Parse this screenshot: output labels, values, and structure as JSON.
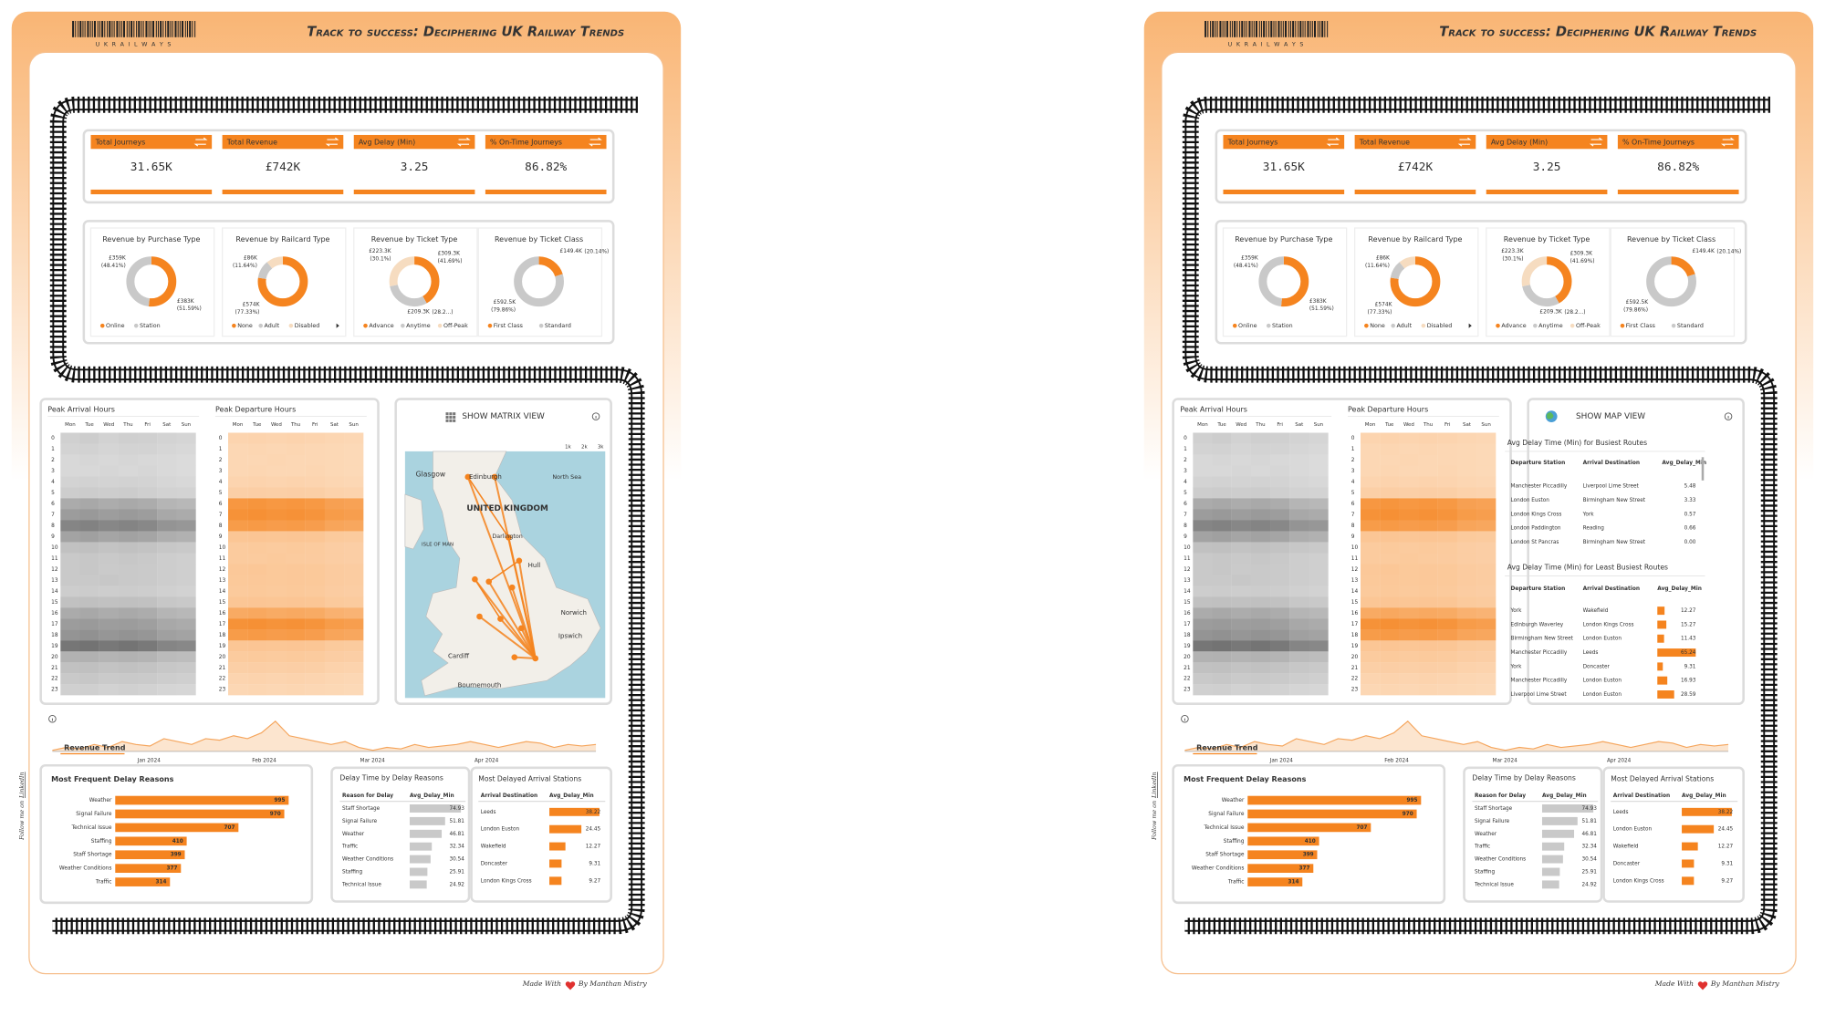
{
  "header": {
    "brand": "U K R A I L W A Y S",
    "title": "Track to success: Deciphering UK Railway Trends"
  },
  "kpis": [
    {
      "label": "Total Journeys",
      "value": "31.65K"
    },
    {
      "label": "Total Revenue",
      "value": "£742K"
    },
    {
      "label": "Avg Delay (Min)",
      "value": "3.25"
    },
    {
      "label": "% On-Time Journeys",
      "value": "86.82%"
    }
  ],
  "donuts": [
    {
      "title": "Revenue by Purchase Type",
      "segments": [
        {
          "name": "Online",
          "color": "#f5841f",
          "value": 51.59,
          "label": "£383K",
          "pct_label": "(51.59%)"
        },
        {
          "name": "Station",
          "color": "#c9c9c9",
          "value": 48.41,
          "label": "£359K",
          "pct_label": "(48.41%)"
        }
      ]
    },
    {
      "title": "Revenue by Railcard Type",
      "segments": [
        {
          "name": "None",
          "color": "#f5841f",
          "value": 77.33,
          "label": "£574K",
          "pct_label": "(77.33%)"
        },
        {
          "name": "Adult",
          "color": "#c9c9c9",
          "value": 11.64,
          "label": "£86K",
          "pct_label": "(11.64%)"
        },
        {
          "name": "Disabled",
          "color": "#f6dcc0",
          "value": 11.03
        }
      ]
    },
    {
      "title": "Revenue by Ticket Type",
      "segments": [
        {
          "name": "Advance",
          "color": "#f5841f",
          "value": 41.69,
          "label": "£309.3K",
          "pct_label": "(41.69%)"
        },
        {
          "name": "Anytime",
          "color": "#c9c9c9",
          "value": 30.1,
          "label": "£223.3K",
          "pct_label": "(30.1%)"
        },
        {
          "name": "Off-Peak",
          "color": "#f6dcc0",
          "value": 28.21,
          "label": "£209.3K",
          "pct_label": "(28.2...)"
        }
      ]
    },
    {
      "title": "Revenue by Ticket Class",
      "segments": [
        {
          "name": "First Class",
          "color": "#f5841f",
          "value": 20.14,
          "label": "£149.4K",
          "pct_label": "(20.14%)"
        },
        {
          "name": "Standard",
          "color": "#c9c9c9",
          "value": 79.86,
          "label": "£592.5K",
          "pct_label": "(79.86%)"
        }
      ]
    }
  ],
  "heatmaps": {
    "days": [
      "Mon",
      "Tue",
      "Wed",
      "Thu",
      "Fri",
      "Sat",
      "Sun"
    ],
    "hours": [
      0,
      1,
      2,
      3,
      4,
      5,
      6,
      7,
      8,
      9,
      10,
      11,
      12,
      13,
      14,
      15,
      16,
      17,
      18,
      19,
      20,
      21,
      22,
      23
    ],
    "arrival": {
      "title": "Peak Arrival Hours",
      "values": [
        [
          20,
          22,
          19,
          21,
          20,
          18,
          17
        ],
        [
          18,
          19,
          17,
          18,
          18,
          16,
          15
        ],
        [
          15,
          16,
          15,
          16,
          15,
          14,
          13
        ],
        [
          15,
          15,
          16,
          15,
          16,
          14,
          13
        ],
        [
          18,
          19,
          18,
          19,
          18,
          16,
          15
        ],
        [
          22,
          23,
          22,
          23,
          21,
          19,
          18
        ],
        [
          45,
          47,
          44,
          46,
          44,
          38,
          36
        ],
        [
          55,
          57,
          54,
          56,
          54,
          47,
          45
        ],
        [
          70,
          72,
          69,
          71,
          68,
          60,
          58
        ],
        [
          50,
          52,
          49,
          51,
          49,
          43,
          41
        ],
        [
          30,
          31,
          29,
          30,
          29,
          26,
          25
        ],
        [
          25,
          26,
          25,
          26,
          25,
          22,
          21
        ],
        [
          25,
          26,
          24,
          25,
          24,
          22,
          21
        ],
        [
          25,
          25,
          26,
          25,
          24,
          22,
          21
        ],
        [
          22,
          23,
          22,
          23,
          22,
          20,
          19
        ],
        [
          30,
          31,
          30,
          31,
          30,
          26,
          25
        ],
        [
          45,
          47,
          44,
          46,
          44,
          38,
          36
        ],
        [
          55,
          56,
          54,
          55,
          53,
          47,
          45
        ],
        [
          60,
          62,
          59,
          61,
          59,
          52,
          50
        ],
        [
          80,
          82,
          79,
          81,
          78,
          70,
          68
        ],
        [
          40,
          41,
          39,
          40,
          39,
          34,
          33
        ],
        [
          30,
          31,
          29,
          30,
          29,
          26,
          25
        ],
        [
          25,
          26,
          24,
          25,
          24,
          22,
          21
        ],
        [
          20,
          21,
          19,
          20,
          19,
          17,
          16
        ]
      ]
    },
    "departure": {
      "title": "Peak Departure Hours",
      "values": [
        [
          15,
          16,
          15,
          16,
          15,
          13,
          12
        ],
        [
          12,
          13,
          12,
          13,
          12,
          11,
          10
        ],
        [
          12,
          12,
          13,
          12,
          12,
          11,
          10
        ],
        [
          12,
          13,
          12,
          12,
          13,
          11,
          10
        ],
        [
          15,
          16,
          15,
          16,
          15,
          13,
          12
        ],
        [
          20,
          21,
          20,
          21,
          20,
          17,
          16
        ],
        [
          80,
          82,
          79,
          81,
          78,
          70,
          68
        ],
        [
          85,
          87,
          84,
          86,
          83,
          75,
          72
        ],
        [
          75,
          77,
          74,
          76,
          73,
          65,
          63
        ],
        [
          30,
          31,
          30,
          31,
          30,
          26,
          25
        ],
        [
          25,
          26,
          25,
          26,
          25,
          22,
          21
        ],
        [
          25,
          25,
          26,
          25,
          24,
          22,
          21
        ],
        [
          28,
          29,
          27,
          28,
          27,
          24,
          23
        ],
        [
          27,
          28,
          27,
          28,
          27,
          24,
          23
        ],
        [
          26,
          27,
          26,
          27,
          26,
          23,
          22
        ],
        [
          30,
          31,
          30,
          31,
          30,
          26,
          25
        ],
        [
          60,
          62,
          59,
          61,
          59,
          52,
          50
        ],
        [
          85,
          87,
          84,
          86,
          83,
          75,
          72
        ],
        [
          75,
          77,
          74,
          76,
          73,
          65,
          63
        ],
        [
          30,
          31,
          30,
          31,
          30,
          26,
          25
        ],
        [
          25,
          26,
          25,
          26,
          25,
          22,
          21
        ],
        [
          20,
          21,
          20,
          21,
          20,
          17,
          16
        ],
        [
          15,
          16,
          15,
          16,
          15,
          13,
          12
        ],
        [
          12,
          13,
          12,
          13,
          12,
          11,
          10
        ]
      ]
    }
  },
  "trend": {
    "title": "Revenue Trend",
    "x_labels": [
      "Jan 2024",
      "Feb 2024",
      "Mar 2024",
      "Apr 2024"
    ],
    "values": [
      8,
      9,
      8.5,
      10,
      9,
      11,
      10,
      9.5,
      12,
      11,
      10,
      12,
      11.5,
      13,
      12,
      14,
      18,
      13,
      12,
      11,
      10,
      11,
      9,
      8,
      9,
      8.5,
      10,
      9,
      9.5,
      10,
      11,
      10,
      9,
      10,
      11,
      10.5,
      9,
      10,
      9.5,
      10
    ]
  },
  "delay_reasons": {
    "title": "Most Frequent Delay Reasons",
    "color": "#f5841f",
    "categories": [
      "Weather",
      "Signal Failure",
      "Technical Issue",
      "Staffing",
      "Staff Shortage",
      "Weather Conditions",
      "Traffic"
    ],
    "values": [
      995,
      970,
      707,
      410,
      399,
      377,
      314
    ]
  },
  "delay_time": {
    "title": "Delay Time by Delay Reasons",
    "columns": [
      "Reason for Delay",
      "Avg_Delay_Min"
    ],
    "rows": [
      "Staff Shortage",
      "Signal Failure",
      "Weather",
      "Traffic",
      "Weather Conditions",
      "Staffing",
      "Technical Issue"
    ],
    "values": [
      74.93,
      51.81,
      46.81,
      32.34,
      30.54,
      25.91,
      24.92
    ]
  },
  "delayed_stations": {
    "title": "Most Delayed Arrival Stations",
    "columns": [
      "Arrival Destination",
      "Avg_Delay_Min"
    ],
    "rows": [
      "Leeds",
      "London Euston",
      "Wakefield",
      "Doncaster",
      "London Kings Cross"
    ],
    "values": [
      38.22,
      24.45,
      12.27,
      9.31,
      9.27
    ]
  },
  "map_view": {
    "button": "SHOW MATRIX VIEW",
    "zoom": [
      "1k",
      "2k",
      "3k"
    ],
    "labels": [
      "Glasgow",
      "Edinburgh",
      "North Sea",
      "UNITED KINGDOM",
      "ISLE OF MAN",
      "Darlington",
      "Hull",
      "Norwich",
      "Ipswich",
      "Cardiff",
      "Bournemouth"
    ]
  },
  "matrix_view": {
    "button": "SHOW MAP VIEW",
    "busiest": {
      "title": "Avg Delay Time (Min) for Busiest Routes",
      "columns": [
        "Departure Station",
        "Arrival Destination",
        "Avg_Delay_Min"
      ],
      "rows": [
        [
          "Manchester Piccadilly",
          "Liverpool Lime Street",
          "5.48"
        ],
        [
          "London Euston",
          "Birmingham New Street",
          "3.33"
        ],
        [
          "London Kings Cross",
          "York",
          "0.57"
        ],
        [
          "London Paddington",
          "Reading",
          "0.66"
        ],
        [
          "London St Pancras",
          "Birmingham New Street",
          "0.00"
        ]
      ]
    },
    "least": {
      "title": "Avg Delay Time (Min) for Least Busiest Routes",
      "columns": [
        "Departure Station",
        "Arrival Destination",
        "Avg_Delay_Min"
      ],
      "rows": [
        [
          "York",
          "Wakefield"
        ],
        [
          "Edinburgh Waverley",
          "London Kings Cross"
        ],
        [
          "Birmingham New Street",
          "London Euston"
        ],
        [
          "Manchester Piccadilly",
          "Leeds"
        ],
        [
          "York",
          "Doncaster"
        ],
        [
          "Manchester Piccadilly",
          "London Euston"
        ],
        [
          "Liverpool Lime Street",
          "London Euston"
        ]
      ],
      "values": [
        12.27,
        15.27,
        11.43,
        65.24,
        9.31,
        16.93,
        28.59
      ]
    }
  },
  "footer": {
    "made": "Made With",
    "by": "By Manthan Mistry",
    "follow": "Follow me on",
    "link": "LinkedIn"
  }
}
